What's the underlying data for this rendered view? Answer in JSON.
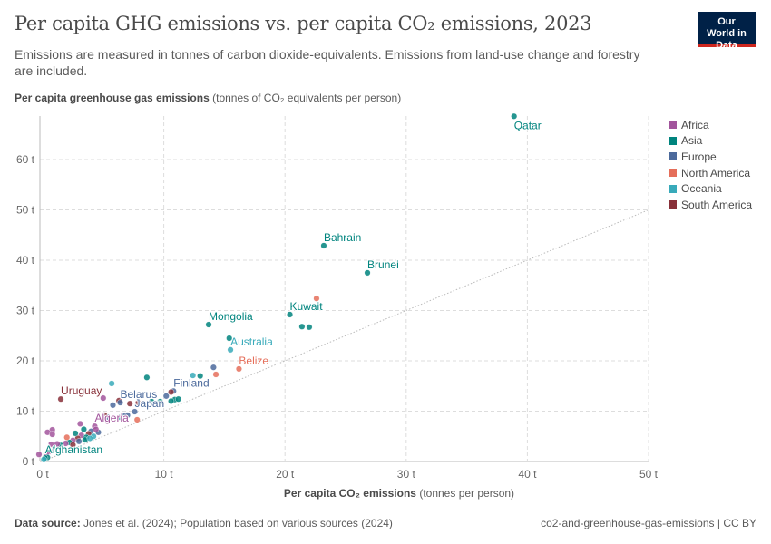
{
  "header": {
    "title": "Per capita GHG emissions vs. per capita CO₂ emissions, 2023",
    "subtitle": "Emissions are measured in tonnes of carbon dioxide-equivalents. Emissions from land-use change and forestry are included.",
    "logo": "Our World in Data"
  },
  "footer": {
    "source_label": "Data source:",
    "source": "Jones et al. (2024); Population based on various sources (2024)",
    "right": "co2-and-greenhouse-gas-emissions | CC BY"
  },
  "chart_data": {
    "type": "scatter",
    "title": "Per capita GHG emissions vs. per capita CO₂ emissions, 2023",
    "ylabel_bold": "Per capita greenhouse gas emissions",
    "ylabel_rest": "(tonnes of CO₂ equivalents per person)",
    "xlabel_bold": "Per capita CO₂ emissions",
    "xlabel_rest": "(tonnes per person)",
    "xlim": [
      0,
      50
    ],
    "ylim": [
      0,
      68
    ],
    "xticks": [
      0,
      10,
      20,
      30,
      40,
      50
    ],
    "xtick_labels": [
      "0 t",
      "10 t",
      "20 t",
      "30 t",
      "40 t",
      "50 t"
    ],
    "yticks": [
      0,
      10,
      20,
      30,
      40,
      50,
      60
    ],
    "ytick_labels": [
      "0 t",
      "10 t",
      "20 t",
      "30 t",
      "40 t",
      "50 t",
      "60 t"
    ],
    "grid": true,
    "reference_line": "y = x",
    "legend_position": "right",
    "legend": [
      {
        "name": "Africa",
        "color": "#a2559c"
      },
      {
        "name": "Asia",
        "color": "#00847e"
      },
      {
        "name": "Europe",
        "color": "#4c6a9c"
      },
      {
        "name": "North America",
        "color": "#e56e5a"
      },
      {
        "name": "Oceania",
        "color": "#38aaba"
      },
      {
        "name": "South America",
        "color": "#883039"
      }
    ],
    "points": [
      {
        "x": 38.9,
        "y": 68.6,
        "r": "Asia",
        "label": "Qatar"
      },
      {
        "x": 23.2,
        "y": 42.9,
        "r": "Asia",
        "label": "Bahrain"
      },
      {
        "x": 26.8,
        "y": 37.5,
        "r": "Asia",
        "label": "Brunei"
      },
      {
        "x": 22.6,
        "y": 32.4,
        "r": "North America"
      },
      {
        "x": 20.4,
        "y": 29.2,
        "r": "Asia",
        "label": "Kuwait"
      },
      {
        "x": 21.4,
        "y": 26.8,
        "r": "Asia"
      },
      {
        "x": 22.0,
        "y": 26.7,
        "r": "Asia"
      },
      {
        "x": 13.7,
        "y": 27.2,
        "r": "Asia",
        "label": "Mongolia"
      },
      {
        "x": 15.4,
        "y": 24.5,
        "r": "Asia"
      },
      {
        "x": 15.5,
        "y": 22.2,
        "r": "Oceania",
        "label": "Australia"
      },
      {
        "x": 16.2,
        "y": 18.4,
        "r": "North America",
        "label": "Belize"
      },
      {
        "x": 14.3,
        "y": 17.3,
        "r": "North America"
      },
      {
        "x": 14.1,
        "y": 18.7,
        "r": "Europe"
      },
      {
        "x": 12.4,
        "y": 17.1,
        "r": "Oceania"
      },
      {
        "x": 13.0,
        "y": 17.0,
        "r": "Asia"
      },
      {
        "x": 8.6,
        "y": 16.7,
        "r": "Asia"
      },
      {
        "x": 5.7,
        "y": 15.5,
        "r": "Oceania"
      },
      {
        "x": 1.5,
        "y": 12.4,
        "r": "South America",
        "label": "Uruguay"
      },
      {
        "x": 5.0,
        "y": 12.6,
        "r": "Africa"
      },
      {
        "x": 10.8,
        "y": 14.0,
        "r": "Europe",
        "label": "Finland"
      },
      {
        "x": 10.6,
        "y": 13.8,
        "r": "South America"
      },
      {
        "x": 10.2,
        "y": 13.0,
        "r": "Europe"
      },
      {
        "x": 10.9,
        "y": 12.3,
        "r": "Asia"
      },
      {
        "x": 10.6,
        "y": 12.0,
        "r": "Asia"
      },
      {
        "x": 11.2,
        "y": 12.4,
        "r": "Asia"
      },
      {
        "x": 9.7,
        "y": 11.9,
        "r": "Asia"
      },
      {
        "x": 9.0,
        "y": 11.9,
        "r": "Asia"
      },
      {
        "x": 7.9,
        "y": 11.7,
        "r": "South America"
      },
      {
        "x": 7.2,
        "y": 11.5,
        "r": "South America"
      },
      {
        "x": 6.3,
        "y": 12.1,
        "r": "South America"
      },
      {
        "x": 6.4,
        "y": 11.7,
        "r": "Europe",
        "label": "Belarus"
      },
      {
        "x": 5.8,
        "y": 11.2,
        "r": "Europe"
      },
      {
        "x": 7.6,
        "y": 9.9,
        "r": "Europe",
        "label": "Japan"
      },
      {
        "x": 7.8,
        "y": 8.3,
        "r": "North America"
      },
      {
        "x": 7.0,
        "y": 9.2,
        "r": "Europe"
      },
      {
        "x": 6.7,
        "y": 9.0,
        "r": "Europe"
      },
      {
        "x": 6.4,
        "y": 8.8,
        "r": "Asia"
      },
      {
        "x": 5.4,
        "y": 8.8,
        "r": "Europe"
      },
      {
        "x": 5.1,
        "y": 9.2,
        "r": "South America"
      },
      {
        "x": 4.3,
        "y": 7.0,
        "r": "Africa",
        "label": "Algeria"
      },
      {
        "x": 3.1,
        "y": 7.5,
        "r": "Africa"
      },
      {
        "x": 0.8,
        "y": 6.3,
        "r": "Africa"
      },
      {
        "x": 0.4,
        "y": 5.8,
        "r": "Africa"
      },
      {
        "x": 0.8,
        "y": 5.4,
        "r": "Africa"
      },
      {
        "x": 3.4,
        "y": 6.4,
        "r": "Asia"
      },
      {
        "x": 4.0,
        "y": 6.0,
        "r": "Europe"
      },
      {
        "x": 4.6,
        "y": 5.8,
        "r": "Europe"
      },
      {
        "x": 3.8,
        "y": 5.5,
        "r": "South America"
      },
      {
        "x": 3.2,
        "y": 5.2,
        "r": "Africa"
      },
      {
        "x": 4.2,
        "y": 5.0,
        "r": "Oceania"
      },
      {
        "x": 3.6,
        "y": 4.8,
        "r": "Asia"
      },
      {
        "x": 2.9,
        "y": 4.6,
        "r": "South America"
      },
      {
        "x": 2.5,
        "y": 4.2,
        "r": "Africa"
      },
      {
        "x": 3.0,
        "y": 4.0,
        "r": "Europe"
      },
      {
        "x": 3.5,
        "y": 4.3,
        "r": "Asia"
      },
      {
        "x": 2.2,
        "y": 3.8,
        "r": "Asia"
      },
      {
        "x": 1.9,
        "y": 3.6,
        "r": "Africa"
      },
      {
        "x": 2.5,
        "y": 3.3,
        "r": "South America"
      },
      {
        "x": 1.5,
        "y": 3.2,
        "r": "Asia"
      },
      {
        "x": 1.2,
        "y": 3.5,
        "r": "Africa"
      },
      {
        "x": 0.7,
        "y": 3.4,
        "r": "Africa"
      },
      {
        "x": 3.9,
        "y": 4.6,
        "r": "Oceania"
      },
      {
        "x": 4.4,
        "y": 6.4,
        "r": "Africa"
      },
      {
        "x": 2.0,
        "y": 4.8,
        "r": "North America"
      },
      {
        "x": 2.7,
        "y": 5.6,
        "r": "Asia"
      },
      {
        "x": 1.0,
        "y": 2.5,
        "r": "Asia"
      },
      {
        "x": 0.6,
        "y": 2.0,
        "r": "Africa"
      },
      {
        "x": 0.3,
        "y": 1.4,
        "r": "Africa"
      },
      {
        "x": -0.3,
        "y": 1.4,
        "r": "Africa"
      },
      {
        "x": 0.4,
        "y": 0.8,
        "r": "Asia"
      },
      {
        "x": 0.2,
        "y": 0.7,
        "r": "Asia",
        "label": "Afghanistan"
      },
      {
        "x": 0.1,
        "y": 0.4,
        "r": "Oceania"
      }
    ]
  }
}
